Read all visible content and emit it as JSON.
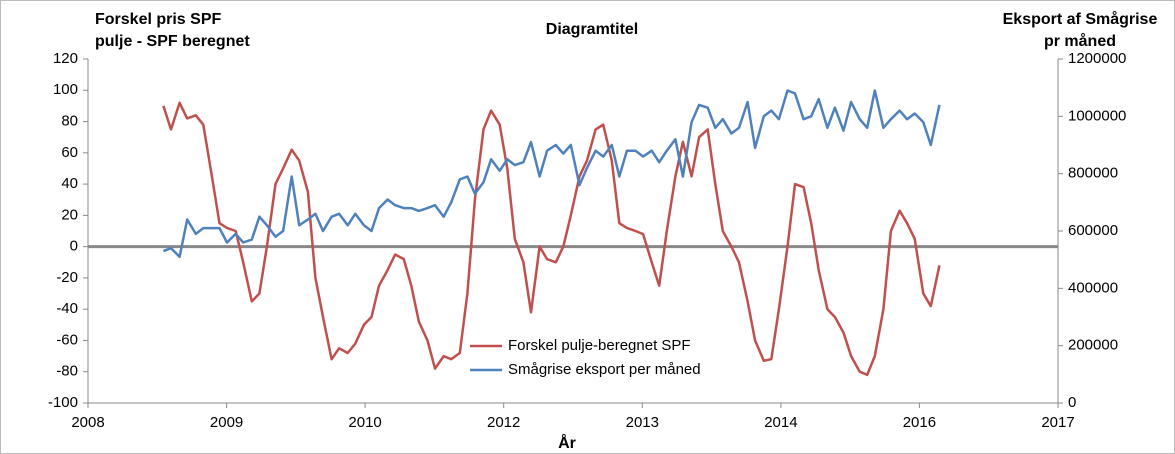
{
  "chart_data": {
    "type": "line",
    "title": "Diagramtitel",
    "y_label": [
      "Forskel  pris SPF",
      "pulje - SPF beregnet"
    ],
    "y2_label": [
      "Eksport af Smågrise",
      "pr måned"
    ],
    "x_label": "År",
    "x": [
      2008.7,
      2008.77,
      2008.85,
      2008.92,
      2009.0,
      2009.07,
      2009.15,
      2009.22,
      2009.29,
      2009.37,
      2009.44,
      2009.52,
      2009.59,
      2009.66,
      2009.74,
      2009.81,
      2009.89,
      2009.96,
      2010.04,
      2010.11,
      2010.18,
      2010.26,
      2010.33,
      2010.41,
      2010.48,
      2010.56,
      2010.63,
      2010.7,
      2010.78,
      2010.85,
      2010.93,
      2011.0,
      2011.07,
      2011.15,
      2011.22,
      2011.3,
      2011.37,
      2011.45,
      2011.52,
      2011.59,
      2011.67,
      2011.74,
      2011.82,
      2011.89,
      2011.96,
      2012.04,
      2012.11,
      2012.19,
      2012.26,
      2012.34,
      2012.41,
      2012.48,
      2012.56,
      2012.63,
      2012.71,
      2012.78,
      2012.86,
      2012.93,
      2013.0,
      2013.08,
      2013.15,
      2013.23,
      2013.3,
      2013.37,
      2013.45,
      2013.52,
      2013.6,
      2013.67,
      2013.75,
      2013.82,
      2013.89,
      2013.97,
      2014.04,
      2014.12,
      2014.19,
      2014.27,
      2014.34,
      2014.41,
      2014.49,
      2014.56,
      2014.64,
      2014.71,
      2014.78,
      2014.86,
      2014.93,
      2015.01,
      2015.08,
      2015.16,
      2015.23,
      2015.3,
      2015.38,
      2015.45,
      2015.53,
      2015.6,
      2015.67,
      2015.75,
      2015.82,
      2015.9
    ],
    "series": [
      {
        "name": "Forskel pulje-beregnet SPF",
        "color": "#c0504d",
        "values": [
          90,
          75,
          92,
          82,
          84,
          78,
          45,
          15,
          12,
          10,
          -10,
          -35,
          -30,
          0,
          40,
          50,
          62,
          55,
          35,
          -20,
          -45,
          -72,
          -65,
          -68,
          -62,
          -50,
          -45,
          -25,
          -15,
          -5,
          -8,
          -25,
          -48,
          -60,
          -78,
          -70,
          -72,
          -68,
          -30,
          30,
          75,
          87,
          78,
          50,
          5,
          -10,
          -42,
          0,
          -8,
          -10,
          0,
          20,
          45,
          55,
          75,
          78,
          55,
          15,
          12,
          10,
          8,
          -10,
          -25,
          10,
          45,
          67,
          45,
          70,
          75,
          40,
          10,
          0,
          -10,
          -35,
          -60,
          -73,
          -72,
          -40,
          0,
          40,
          38,
          15,
          -15,
          -40,
          -45,
          -55,
          -70,
          -80,
          -82,
          -70,
          -40,
          10,
          23,
          15,
          5,
          -30,
          -38,
          -12
        ]
      },
      {
        "name": "Smågrise eksport per måned",
        "color": "#4f81bd",
        "axis": "y2",
        "values": [
          530000,
          540000,
          510000,
          640000,
          590000,
          610000,
          610000,
          610000,
          560000,
          590000,
          560000,
          570000,
          650000,
          620000,
          580000,
          600000,
          790000,
          620000,
          640000,
          660000,
          600000,
          650000,
          660000,
          620000,
          660000,
          620000,
          600000,
          680000,
          710000,
          690000,
          680000,
          680000,
          670000,
          680000,
          690000,
          650000,
          700000,
          780000,
          790000,
          730000,
          770000,
          850000,
          810000,
          850000,
          830000,
          840000,
          910000,
          790000,
          880000,
          900000,
          870000,
          900000,
          760000,
          820000,
          880000,
          860000,
          900000,
          790000,
          880000,
          880000,
          860000,
          880000,
          840000,
          880000,
          920000,
          790000,
          980000,
          1040000,
          1030000,
          960000,
          990000,
          940000,
          960000,
          1050000,
          890000,
          1000000,
          1020000,
          990000,
          1090000,
          1080000,
          990000,
          1000000,
          1060000,
          960000,
          1030000,
          950000,
          1050000,
          990000,
          960000,
          1090000,
          960000,
          990000,
          1020000,
          990000,
          1010000,
          980000,
          900000,
          1040000
        ]
      }
    ],
    "xlim": [
      2008,
      2017
    ],
    "xticks": [
      2008,
      {
        "value": 2009.286,
        "label": "2009"
      },
      {
        "value": 2010.571,
        "label": "2010"
      },
      {
        "value": 2011.857,
        "label": "2012"
      },
      {
        "value": 2013.143,
        "label": "2013"
      },
      {
        "value": 2014.429,
        "label": "2014"
      },
      {
        "value": 2015.714,
        "label": "2016"
      },
      2017
    ],
    "ylim": [
      -100,
      120
    ],
    "yticks": [
      -100,
      -80,
      -60,
      -40,
      -20,
      0,
      20,
      40,
      60,
      80,
      100,
      120
    ],
    "y2lim": [
      0,
      1200000
    ],
    "y2ticks": [
      0,
      200000,
      400000,
      600000,
      800000,
      1000000,
      1200000
    ],
    "grid": false
  }
}
